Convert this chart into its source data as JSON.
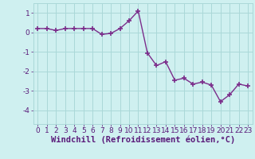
{
  "x": [
    0,
    1,
    2,
    3,
    4,
    5,
    6,
    7,
    8,
    9,
    10,
    11,
    12,
    13,
    14,
    15,
    16,
    17,
    18,
    19,
    20,
    21,
    22,
    23
  ],
  "y": [
    0.2,
    0.2,
    0.1,
    0.2,
    0.2,
    0.2,
    0.2,
    -0.1,
    -0.05,
    0.2,
    0.6,
    1.1,
    -1.05,
    -1.7,
    -1.5,
    -2.45,
    -2.35,
    -2.65,
    -2.55,
    -2.7,
    -3.55,
    -3.2,
    -2.65,
    -2.75
  ],
  "line_color": "#7b2d8b",
  "marker": "+",
  "marker_size": 4,
  "marker_lw": 1.2,
  "bg_color": "#cff0f0",
  "grid_color": "#aad8d8",
  "xlabel": "Windchill (Refroidissement éolien,°C)",
  "xlabel_fontsize": 7.5,
  "ylabel_ticks": [
    -4,
    -3,
    -2,
    -1,
    0,
    1
  ],
  "xlim": [
    -0.5,
    23.5
  ],
  "ylim": [
    -4.7,
    1.5
  ],
  "xtick_labels": [
    "0",
    "1",
    "2",
    "3",
    "4",
    "5",
    "6",
    "7",
    "8",
    "9",
    "10",
    "11",
    "12",
    "13",
    "14",
    "15",
    "16",
    "17",
    "18",
    "19",
    "20",
    "21",
    "22",
    "23"
  ],
  "tick_fontsize": 6.5,
  "line_width": 1.0,
  "label_color": "#5a1a7a"
}
